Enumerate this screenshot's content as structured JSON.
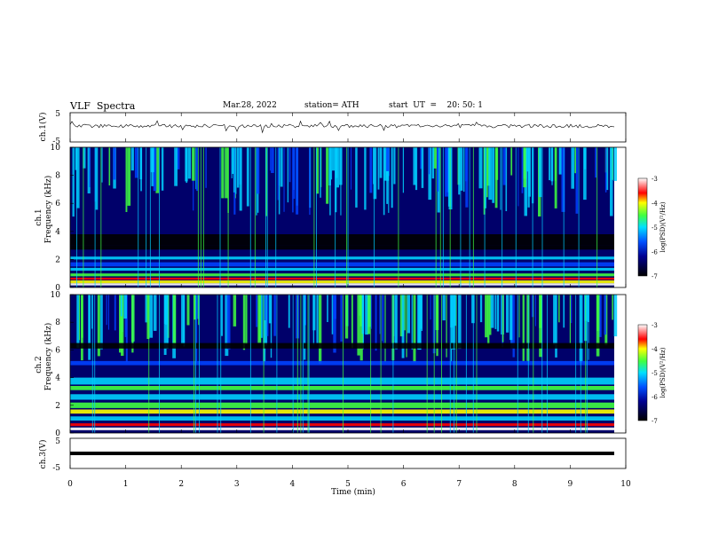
{
  "header": {
    "title": "VLF  Spectra",
    "date": "Mar.28, 2022",
    "station": "station= ATH",
    "start": "start  UT  =    20: 50: 1"
  },
  "chart_data": [
    {
      "panel": "ch1-waveform",
      "type": "line",
      "ylabel": "ch.1(V)",
      "ylim": [
        -5,
        5
      ],
      "yticks": [
        "5",
        "-5"
      ],
      "xlim": [
        0,
        10
      ],
      "description_free": true
    },
    {
      "panel": "ch1-spectrogram",
      "type": "heatmap",
      "ylabel": "ch.1\nFrequency  (kHz)",
      "ylabel_line1": "ch.1",
      "ylabel_line2": "Frequency  (kHz)",
      "ylim": [
        0,
        10
      ],
      "yticks": [
        "10",
        "8",
        "6",
        "4",
        "2",
        "0"
      ],
      "xlim": [
        0,
        9.8
      ],
      "colorbar": {
        "label": "log(PSD)(V²/Hz)",
        "range": [
          -7,
          -3
        ],
        "ticks": [
          "-3",
          "-4",
          "-5",
          "-6",
          "-7"
        ]
      }
    },
    {
      "panel": "ch2-spectrogram",
      "type": "heatmap",
      "ylabel_line1": "ch.2",
      "ylabel_line2": "Frequency  (kHz)",
      "ylim": [
        0,
        10
      ],
      "yticks": [
        "10",
        "8",
        "6",
        "4",
        "2",
        "0"
      ],
      "xlim": [
        0,
        9.8
      ],
      "colorbar": {
        "label": "log(PSD)(V²/Hz)",
        "range": [
          -7,
          -3
        ],
        "ticks": [
          "-3",
          "-4",
          "-5",
          "-6",
          "-7"
        ]
      }
    },
    {
      "panel": "ch3-waveform",
      "type": "line",
      "ylabel": "ch.3(V)",
      "ylim": [
        -5,
        5
      ],
      "yticks": [
        "5",
        "-5"
      ],
      "level": -1.5
    }
  ],
  "xaxis": {
    "label": "Time  (min)",
    "ticks": [
      "0",
      "1",
      "2",
      "3",
      "4",
      "5",
      "6",
      "7",
      "8",
      "9",
      "10"
    ],
    "range": [
      0,
      10
    ]
  },
  "colors": {
    "black": "#000000",
    "navy": "#00007a",
    "blue": "#0040ff",
    "cyan": "#00d0ff",
    "green": "#40ff40",
    "yellow": "#ffff00",
    "red": "#ff0000",
    "white": "#ffffff"
  }
}
